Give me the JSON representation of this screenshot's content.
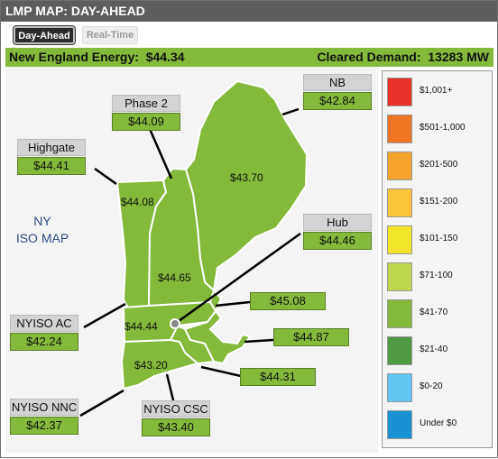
{
  "app": {
    "title": "LMP MAP: DAY-AHEAD"
  },
  "tabs": [
    {
      "label": "Day-Ahead",
      "active": true
    },
    {
      "label": "Real-Time",
      "active": false
    }
  ],
  "summary": {
    "energy_label": "New England Energy:",
    "energy_value": "$44.34",
    "demand_label": "Cleared Demand:",
    "demand_value": "13283 MW"
  },
  "map": {
    "ny_line1": "NY",
    "ny_line2": "ISO MAP",
    "zones": [
      {
        "id": "vermont",
        "price": "$44.08"
      },
      {
        "id": "maine",
        "price": "$43.70"
      },
      {
        "id": "new-hampshire",
        "price": "$44.65"
      },
      {
        "id": "wcmass",
        "price": "$44.44"
      },
      {
        "id": "connecticut",
        "price": "$43.20"
      }
    ],
    "callouts": [
      {
        "id": "phase2",
        "name": "Phase 2",
        "price": "$44.09"
      },
      {
        "id": "nb",
        "name": "NB",
        "price": "$42.84"
      },
      {
        "id": "highgate",
        "name": "Highgate",
        "price": "$44.41"
      },
      {
        "id": "hub",
        "name": "Hub",
        "price": "$44.46"
      },
      {
        "id": "nyiso-ac",
        "name": "NYISO AC",
        "price": "$42.24"
      },
      {
        "id": "nyiso-nnc",
        "name": "NYISO NNC",
        "price": "$42.37"
      },
      {
        "id": "nyiso-csc",
        "name": "NYISO CSC",
        "price": "$43.40"
      }
    ],
    "unlabeled": [
      {
        "id": "nemass",
        "price": "$45.08"
      },
      {
        "id": "semass",
        "price": "$44.87"
      },
      {
        "id": "rhode-island",
        "price": "$44.31"
      }
    ],
    "fill_color": "#85b93b"
  },
  "legend": [
    {
      "label": "$1,001+",
      "color": "#e8302a"
    },
    {
      "label": "$501-1,000",
      "color": "#ee7524"
    },
    {
      "label": "$201-500",
      "color": "#f3a22a"
    },
    {
      "label": "$151-200",
      "color": "#fcc43a"
    },
    {
      "label": "$101-150",
      "color": "#f2e52a"
    },
    {
      "label": "$71-100",
      "color": "#bed84e"
    },
    {
      "label": "$41-70",
      "color": "#85b93b"
    },
    {
      "label": "$21-40",
      "color": "#4f9a43"
    },
    {
      "label": "$0-20",
      "color": "#5ec6f1"
    },
    {
      "label": "Under $0",
      "color": "#1992d4"
    }
  ]
}
